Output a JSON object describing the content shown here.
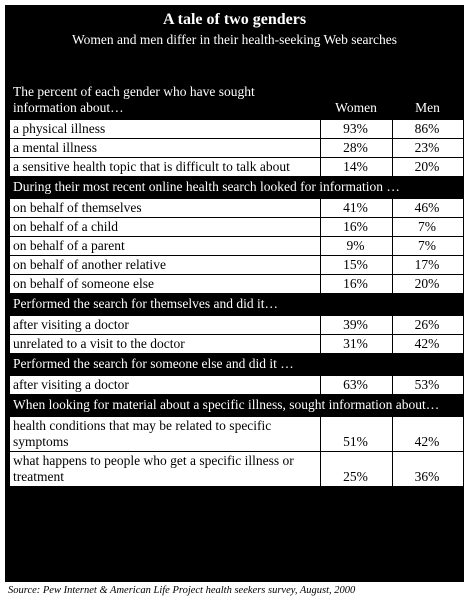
{
  "title": "A tale of two genders",
  "subtitle": "Women and men differ in their health-seeking Web searches",
  "columns": {
    "women": "Women",
    "men": "Men"
  },
  "sections": [
    {
      "heading": "The percent of each gender who have sought information about…",
      "rows": [
        {
          "label": "a physical illness",
          "women": "93%",
          "men": "86%"
        },
        {
          "label": "a mental illness",
          "women": "28%",
          "men": "23%"
        },
        {
          "label": "a sensitive health topic that is difficult to talk about",
          "women": "14%",
          "men": "20%"
        }
      ]
    },
    {
      "heading": "During their most recent online health search looked for information …",
      "rows": [
        {
          "label": "on behalf of themselves",
          "women": "41%",
          "men": "46%"
        },
        {
          "label": "on behalf of a child",
          "women": "16%",
          "men": "7%"
        },
        {
          "label": "on behalf of a parent",
          "women": "9%",
          "men": "7%"
        },
        {
          "label": "on behalf of another relative",
          "women": "15%",
          "men": "17%"
        },
        {
          "label": "on behalf of someone else",
          "women": "16%",
          "men": "20%"
        }
      ]
    },
    {
      "heading": "Performed the search for themselves and did it…",
      "rows": [
        {
          "label": "after visiting a doctor",
          "women": "39%",
          "men": "26%"
        },
        {
          "label": "unrelated to a visit to the doctor",
          "women": "31%",
          "men": "42%"
        }
      ]
    },
    {
      "heading": "Performed the search for someone else and did it …",
      "rows": [
        {
          "label": "after visiting a doctor",
          "women": "63%",
          "men": "53%"
        }
      ]
    },
    {
      "heading": "When looking for material about a specific illness, sought information about…",
      "rows": [
        {
          "label": "health conditions that may be related to specific symptoms",
          "women": "51%",
          "men": "42%"
        },
        {
          "label": "what happens to people who get a specific illness or treatment",
          "women": "25%",
          "men": "36%"
        }
      ]
    }
  ],
  "source": "Source: Pew Internet & American Life Project health seekers survey, August, 2000"
}
